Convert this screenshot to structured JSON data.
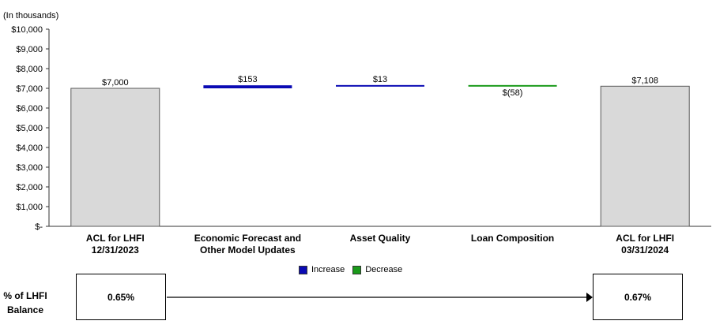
{
  "chart_data": {
    "type": "bar",
    "subtype": "waterfall",
    "unit_note": "(In thousands)",
    "ylim": [
      0,
      10000
    ],
    "y_ticks": [
      {
        "value": 10000,
        "label": "$10,000"
      },
      {
        "value": 9000,
        "label": "$9,000"
      },
      {
        "value": 8000,
        "label": "$8,000"
      },
      {
        "value": 7000,
        "label": "$7,000"
      },
      {
        "value": 6000,
        "label": "$6,000"
      },
      {
        "value": 5000,
        "label": "$5,000"
      },
      {
        "value": 4000,
        "label": "$4,000"
      },
      {
        "value": 3000,
        "label": "$3,000"
      },
      {
        "value": 2000,
        "label": "$2,000"
      },
      {
        "value": 1000,
        "label": "$1,000"
      },
      {
        "value": 0,
        "label": "$-"
      }
    ],
    "categories": [
      {
        "line1": "ACL for LHFI",
        "line2": "12/31/2023"
      },
      {
        "line1": "Economic Forecast and",
        "line2": "Other Model Updates"
      },
      {
        "line1": "Asset Quality",
        "line2": ""
      },
      {
        "line1": "Loan Composition",
        "line2": ""
      },
      {
        "line1": "ACL for LHFI",
        "line2": "03/31/2024"
      }
    ],
    "bars": [
      {
        "kind": "total",
        "start": 0,
        "end": 7000,
        "label": "$7,000"
      },
      {
        "kind": "increase",
        "start": 7000,
        "end": 7153,
        "label": "$153"
      },
      {
        "kind": "increase",
        "start": 7153,
        "end": 7166,
        "label": "$13"
      },
      {
        "kind": "decrease",
        "start": 7166,
        "end": 7108,
        "label": "$(58)"
      },
      {
        "kind": "total",
        "start": 0,
        "end": 7108,
        "label": "$7,108"
      }
    ],
    "colors": {
      "total": "#d9d9d9",
      "total_border": "#595959",
      "increase": "#0a0ab4",
      "decrease": "#1a9a1a",
      "axis": "#333333"
    },
    "legend": [
      {
        "label": "Increase",
        "color": "#0a0ab4"
      },
      {
        "label": "Decrease",
        "color": "#1a9a1a"
      }
    ]
  },
  "balance": {
    "label_line1": "% of LHFI",
    "label_line2": "Balance",
    "start_value": "0.65%",
    "end_value": "0.67%"
  }
}
